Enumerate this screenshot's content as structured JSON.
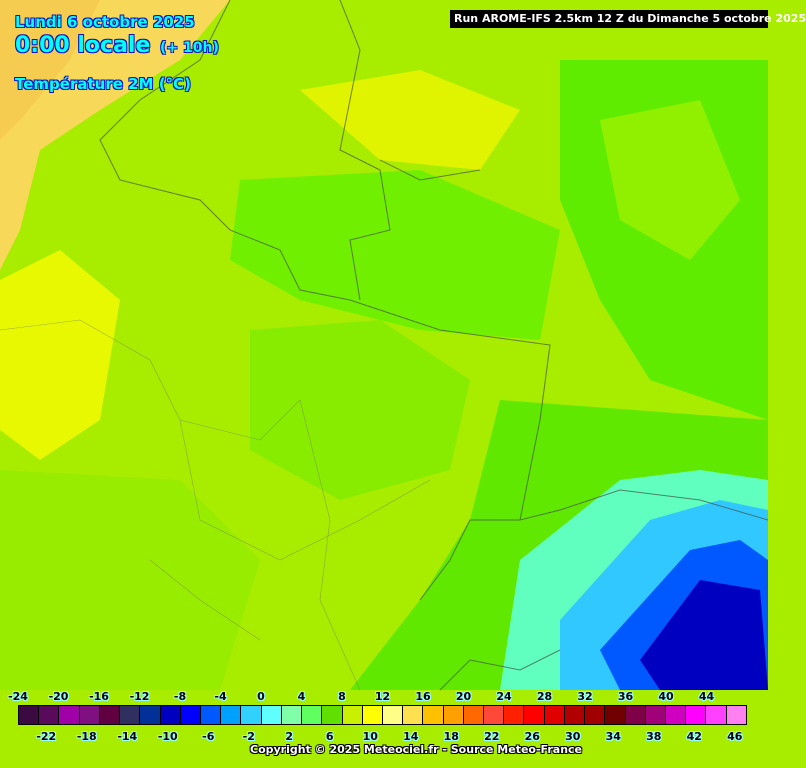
{
  "header": {
    "date": "Lundi 6 octobre 2025",
    "time": "0:00 locale",
    "lead": "(+ 10h)",
    "parameter": "Température 2M (°C)",
    "run": "Run AROME-IFS 2.5km 12 Z du Dimanche 5 octobre 2025"
  },
  "legend": {
    "top_labels": [
      "-24",
      "-20",
      "-16",
      "-12",
      "-8",
      "-4",
      "0",
      "4",
      "8",
      "12",
      "16",
      "20",
      "24",
      "28",
      "32",
      "36",
      "40",
      "44"
    ],
    "bottom_labels": [
      "-22",
      "-18",
      "-14",
      "-10",
      "-6",
      "-2",
      "2",
      "6",
      "10",
      "14",
      "18",
      "22",
      "26",
      "30",
      "34",
      "38",
      "42",
      "46"
    ],
    "colors": [
      "#3a0a40",
      "#5a0a5a",
      "#a000a8",
      "#801080",
      "#600040",
      "#303060",
      "#003098",
      "#0000c0",
      "#0000ff",
      "#0058ff",
      "#00a0ff",
      "#30d0ff",
      "#60ffff",
      "#80ffa8",
      "#60ff60",
      "#60e000",
      "#c8f000",
      "#ffff00",
      "#ffff88",
      "#ffe050",
      "#ffc000",
      "#ffa000",
      "#ff6800",
      "#ff4838",
      "#ff2000",
      "#ff0000",
      "#e00000",
      "#b00000",
      "#a00000",
      "#700000",
      "#800048",
      "#a00078",
      "#d000c0",
      "#ff00ff",
      "#ff40ff",
      "#ff80f0"
    ]
  },
  "footer": {
    "copyright": "Copyright © 2025 Meteociel.fr - Source Meteo-France"
  }
}
